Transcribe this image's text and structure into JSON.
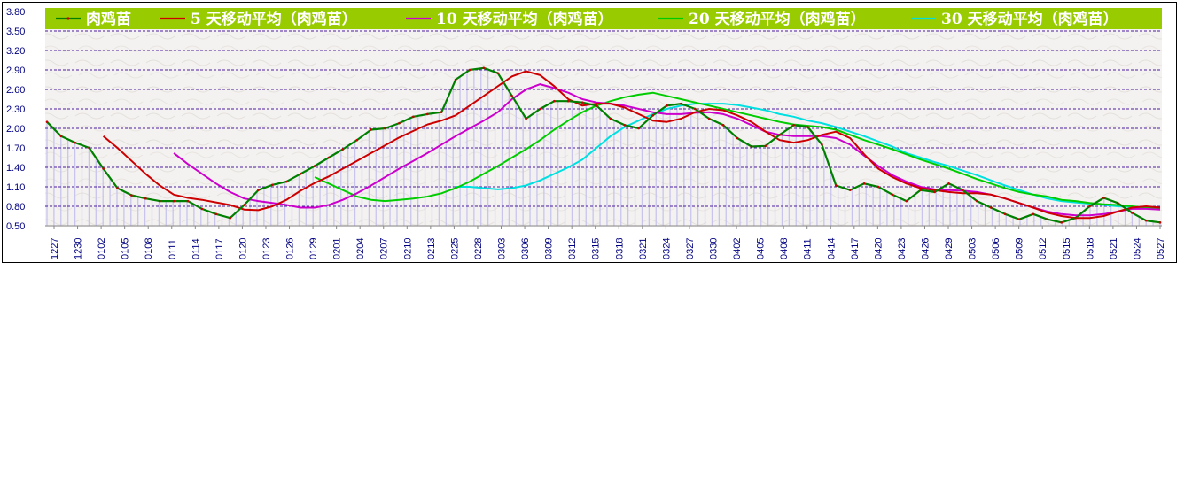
{
  "chart_data": {
    "type": "line",
    "title": "",
    "xlabel": "",
    "ylabel": "",
    "ylim": [
      0.5,
      3.8
    ],
    "y_ticks": [
      "3.80",
      "3.50",
      "3.20",
      "2.90",
      "2.60",
      "2.30",
      "2.00",
      "1.70",
      "1.40",
      "1.10",
      "0.80",
      "0.50"
    ],
    "y_tick_values": [
      3.8,
      3.5,
      3.2,
      2.9,
      2.6,
      2.3,
      2.0,
      1.7,
      1.4,
      1.1,
      0.8,
      0.5
    ],
    "x_tick_labels": [
      "1227",
      "1230",
      "0102",
      "0105",
      "0108",
      "0111",
      "0114",
      "0117",
      "0120",
      "0123",
      "0126",
      "0129",
      "0201",
      "0204",
      "0207",
      "0210",
      "0213",
      "0225",
      "0228",
      "0303",
      "0306",
      "0309",
      "0312",
      "0315",
      "0318",
      "0321",
      "0324",
      "0327",
      "0330",
      "0402",
      "0405",
      "0408",
      "0411",
      "0414",
      "0417",
      "0420",
      "0423",
      "0426",
      "0429",
      "0503",
      "0506",
      "0509",
      "0512",
      "0515",
      "0518",
      "0521",
      "0524",
      "0527"
    ],
    "grid": true,
    "legend_placement": "top",
    "background_bars": true,
    "plot_bg": "#f4f2f0",
    "legend_bg": "#99cc00",
    "series": [
      {
        "name": "肉鸡苗",
        "color": "#008000",
        "marker_color": "#cc0000",
        "values": [
          2.1,
          1.88,
          1.78,
          1.7,
          1.38,
          1.08,
          0.97,
          0.92,
          0.88,
          0.88,
          0.88,
          0.76,
          0.68,
          0.62,
          0.82,
          1.05,
          1.13,
          1.18,
          1.3,
          1.42,
          1.55,
          1.68,
          1.82,
          1.98,
          2.0,
          2.08,
          2.18,
          2.22,
          2.25,
          2.75,
          2.9,
          2.93,
          2.85,
          2.5,
          2.15,
          2.3,
          2.42,
          2.42,
          2.4,
          2.35,
          2.15,
          2.05,
          2.0,
          2.2,
          2.35,
          2.38,
          2.3,
          2.15,
          2.05,
          1.85,
          1.72,
          1.73,
          1.9,
          2.05,
          2.02,
          1.75,
          1.12,
          1.05,
          1.15,
          1.1,
          0.98,
          0.88,
          1.05,
          1.02,
          1.15,
          1.05,
          0.88,
          0.78,
          0.68,
          0.6,
          0.68,
          0.6,
          0.55,
          0.62,
          0.8,
          0.93,
          0.85,
          0.7,
          0.58,
          0.55
        ]
      },
      {
        "name": "5 天移动平均（肉鸡苗）",
        "color": "#cc0000",
        "values": [
          null,
          null,
          null,
          null,
          1.88,
          1.7,
          1.5,
          1.3,
          1.12,
          0.98,
          0.93,
          0.9,
          0.86,
          0.82,
          0.75,
          0.74,
          0.8,
          0.9,
          1.04,
          1.16,
          1.26,
          1.38,
          1.5,
          1.62,
          1.74,
          1.86,
          1.96,
          2.06,
          2.12,
          2.2,
          2.35,
          2.5,
          2.65,
          2.8,
          2.88,
          2.82,
          2.65,
          2.45,
          2.35,
          2.38,
          2.38,
          2.32,
          2.22,
          2.12,
          2.1,
          2.15,
          2.25,
          2.3,
          2.28,
          2.2,
          2.1,
          1.95,
          1.82,
          1.78,
          1.82,
          1.9,
          1.95,
          1.85,
          1.6,
          1.38,
          1.25,
          1.15,
          1.08,
          1.05,
          1.02,
          1.0,
          1.0,
          0.98,
          0.92,
          0.85,
          0.78,
          0.7,
          0.65,
          0.62,
          0.62,
          0.65,
          0.72,
          0.78,
          0.8,
          0.78
        ]
      },
      {
        "name": "10 天移动平均（肉鸡苗）",
        "color": "#cc00cc",
        "values": [
          null,
          null,
          null,
          null,
          null,
          null,
          null,
          null,
          null,
          1.62,
          1.45,
          1.3,
          1.15,
          1.02,
          0.92,
          0.88,
          0.85,
          0.82,
          0.78,
          0.78,
          0.82,
          0.9,
          1.0,
          1.12,
          1.25,
          1.38,
          1.5,
          1.62,
          1.75,
          1.88,
          2.0,
          2.12,
          2.25,
          2.45,
          2.6,
          2.68,
          2.62,
          2.55,
          2.45,
          2.4,
          2.38,
          2.35,
          2.3,
          2.25,
          2.22,
          2.22,
          2.24,
          2.25,
          2.22,
          2.15,
          2.05,
          1.95,
          1.9,
          1.88,
          1.88,
          1.88,
          1.85,
          1.75,
          1.58,
          1.42,
          1.28,
          1.18,
          1.1,
          1.06,
          1.05,
          1.04,
          1.02,
          0.98,
          0.92,
          0.85,
          0.78,
          0.72,
          0.68,
          0.66,
          0.66,
          0.68,
          0.72,
          0.76,
          0.76,
          0.75
        ]
      },
      {
        "name": "20 天移动平均（肉鸡苗）",
        "color": "#00cc00",
        "values": [
          null,
          null,
          null,
          null,
          null,
          null,
          null,
          null,
          null,
          null,
          null,
          null,
          null,
          null,
          null,
          null,
          null,
          null,
          null,
          1.25,
          1.15,
          1.05,
          0.95,
          0.9,
          0.88,
          0.9,
          0.92,
          0.95,
          1.0,
          1.08,
          1.18,
          1.3,
          1.42,
          1.55,
          1.68,
          1.82,
          1.98,
          2.12,
          2.25,
          2.35,
          2.42,
          2.48,
          2.52,
          2.55,
          2.5,
          2.45,
          2.4,
          2.35,
          2.3,
          2.25,
          2.2,
          2.15,
          2.1,
          2.06,
          2.04,
          2.02,
          1.98,
          1.9,
          1.82,
          1.75,
          1.68,
          1.6,
          1.52,
          1.45,
          1.38,
          1.3,
          1.22,
          1.15,
          1.08,
          1.02,
          0.98,
          0.95,
          0.9,
          0.88,
          0.85,
          0.83,
          0.82,
          0.8,
          0.78,
          0.76
        ]
      },
      {
        "name": "30 天移动平均（肉鸡苗）",
        "color": "#00e0e0",
        "values": [
          null,
          null,
          null,
          null,
          null,
          null,
          null,
          null,
          null,
          null,
          null,
          null,
          null,
          null,
          null,
          null,
          null,
          null,
          null,
          null,
          null,
          null,
          null,
          null,
          null,
          null,
          null,
          null,
          null,
          1.1,
          1.1,
          1.08,
          1.06,
          1.08,
          1.12,
          1.2,
          1.3,
          1.4,
          1.52,
          1.7,
          1.88,
          2.02,
          2.12,
          2.22,
          2.3,
          2.35,
          2.38,
          2.38,
          2.38,
          2.36,
          2.32,
          2.28,
          2.22,
          2.18,
          2.12,
          2.08,
          2.02,
          1.95,
          1.88,
          1.8,
          1.72,
          1.62,
          1.55,
          1.48,
          1.42,
          1.35,
          1.28,
          1.2,
          1.12,
          1.05,
          0.98,
          0.92,
          0.88,
          0.86,
          0.84,
          0.82,
          0.8,
          0.79,
          0.78,
          0.78
        ]
      }
    ]
  }
}
